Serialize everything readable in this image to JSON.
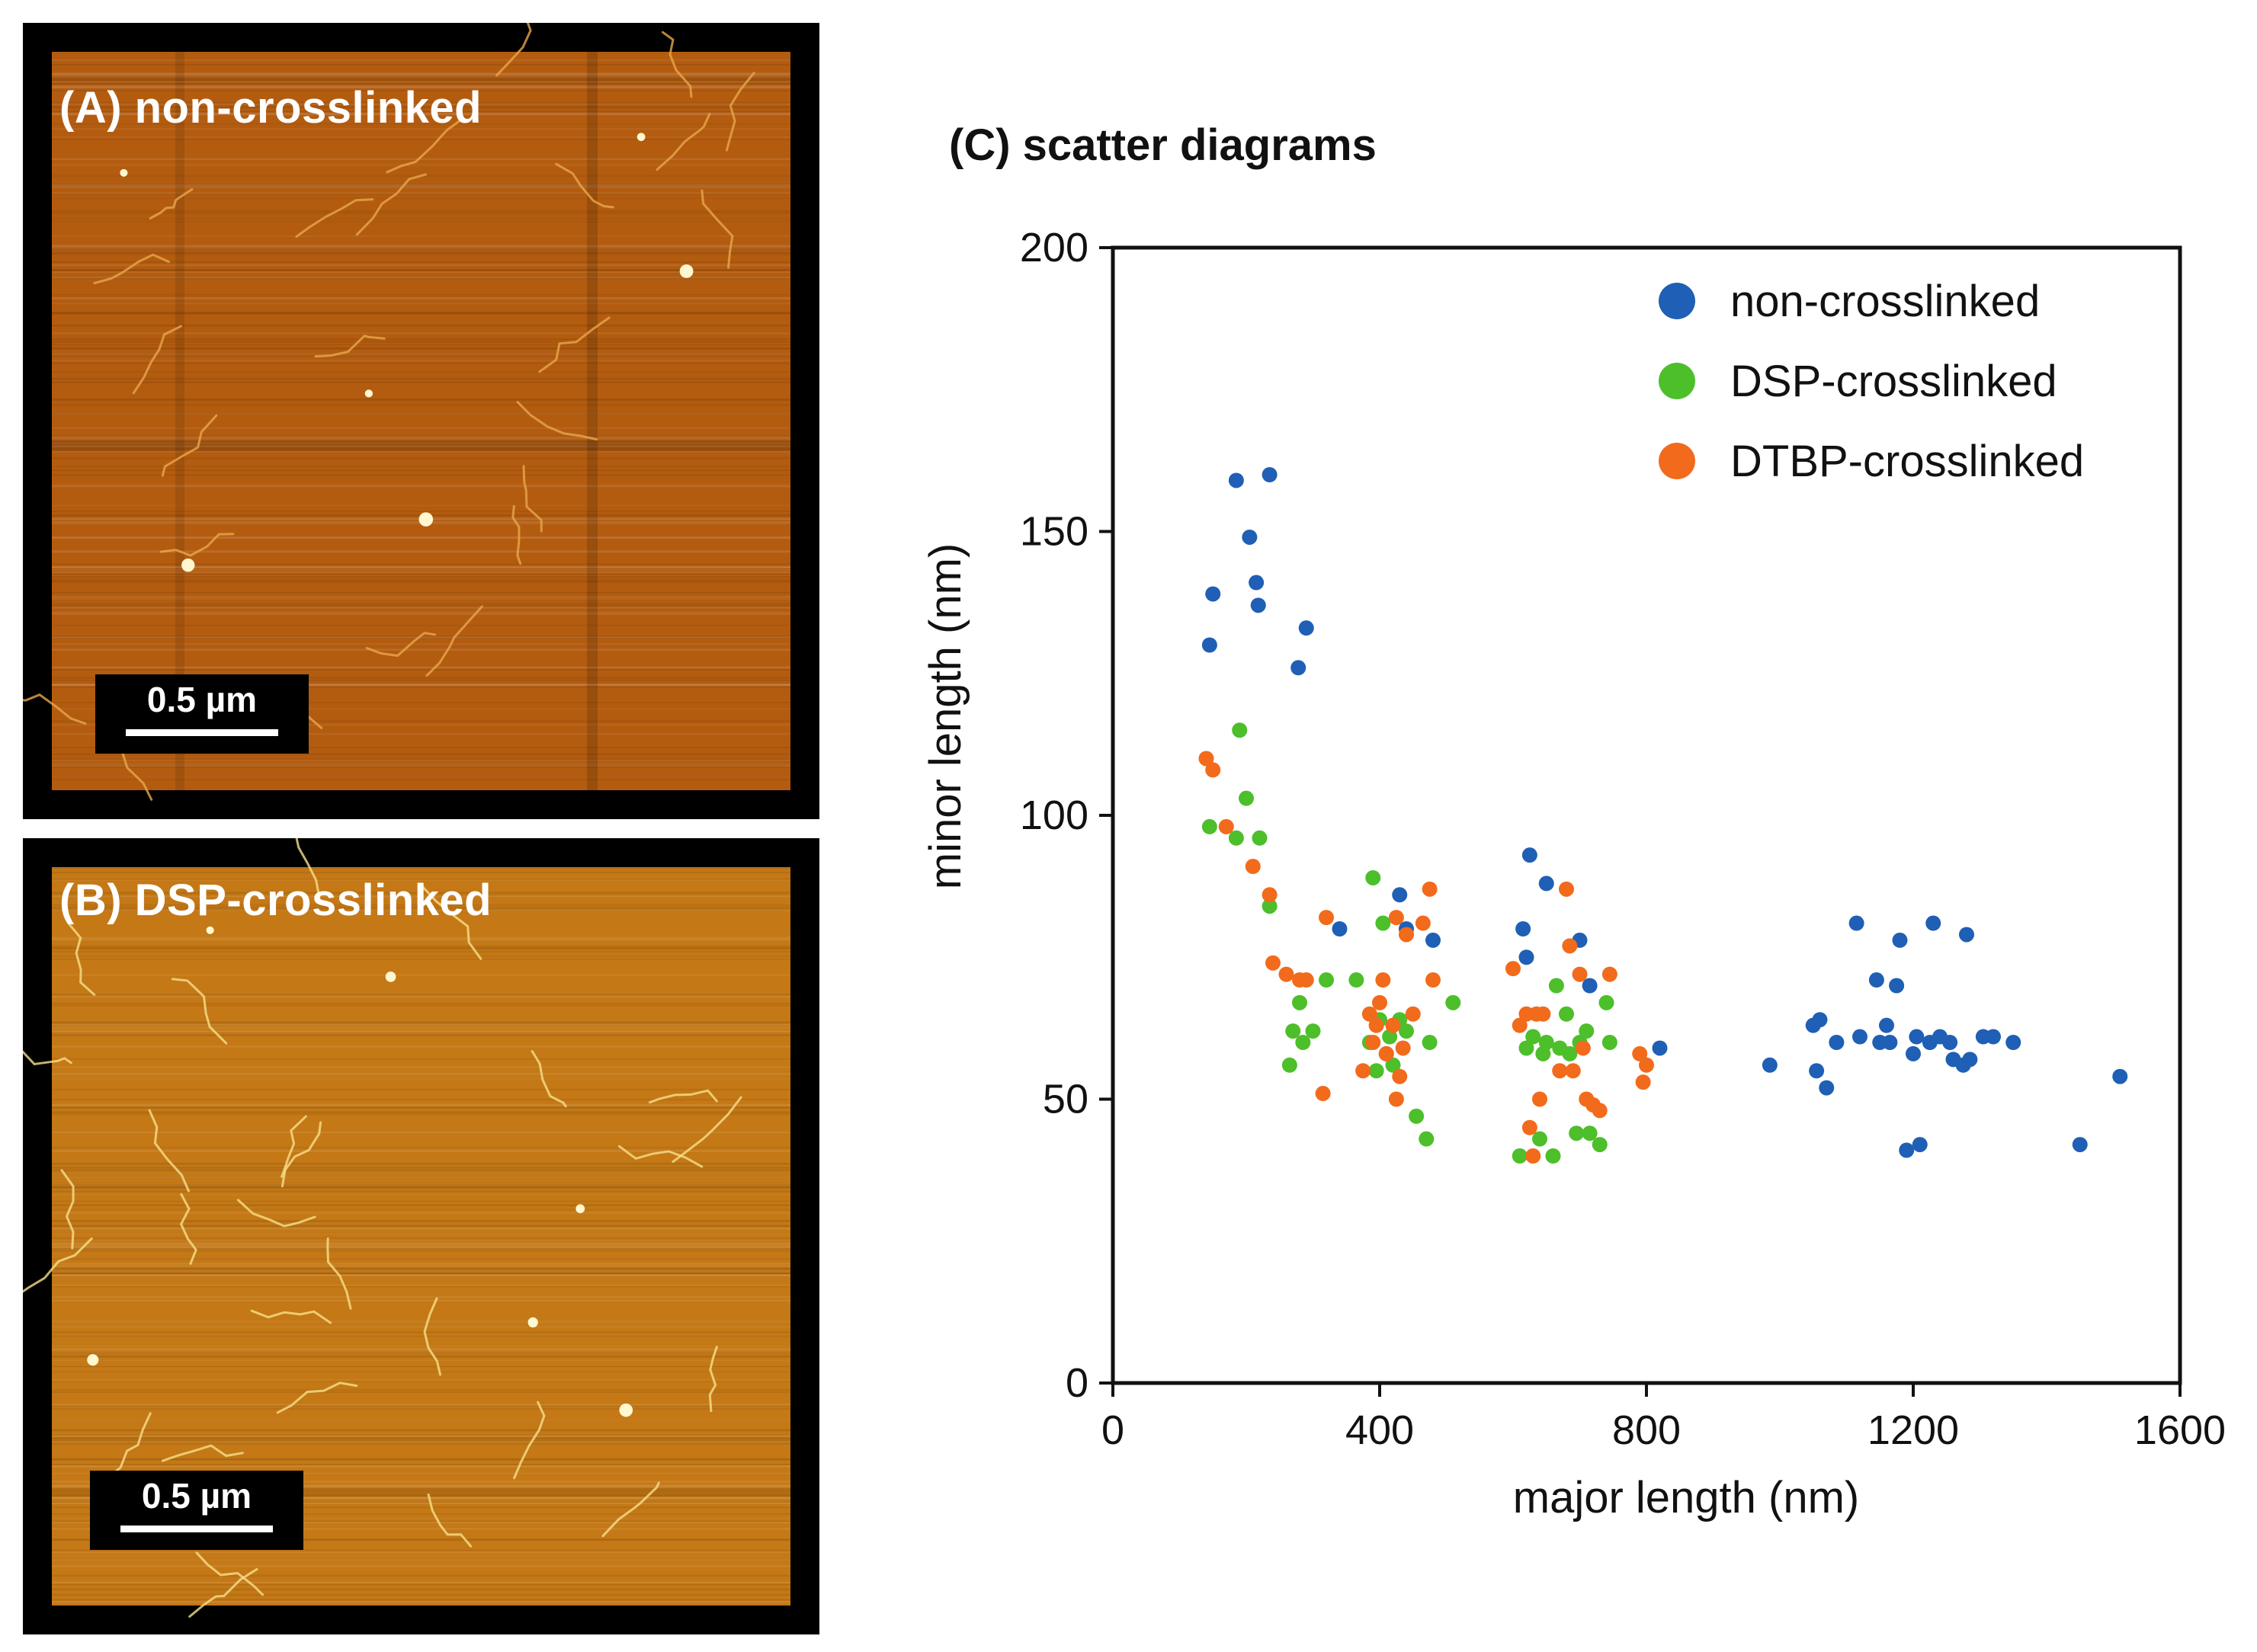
{
  "panels": [
    {
      "label": "(A) non-crosslinked",
      "scalebar": "0.5 µm",
      "palette": "dark"
    },
    {
      "label": "(B) DSP-crosslinked",
      "scalebar": "0.5 µm",
      "palette": "bright"
    }
  ],
  "colors": {
    "afm_dark": "#b35c10",
    "afm_bright": "#c47816",
    "non_crosslinked": "#1f5fb5",
    "dsp": "#4cbf2a",
    "dtbp": "#f26a1b"
  },
  "chart_data": {
    "type": "scatter",
    "title": "(C) scatter diagrams",
    "xlabel": "major length (nm)",
    "ylabel": "minor length (nm)",
    "xlim": [
      0,
      1600
    ],
    "ylim": [
      0,
      200
    ],
    "xticks": [
      0,
      400,
      800,
      1200,
      1600
    ],
    "yticks": [
      0,
      50,
      100,
      150,
      200
    ],
    "grid": false,
    "legend_position": "top-right",
    "series": [
      {
        "name": "non-crosslinked",
        "color": "#1f5fb5",
        "points": [
          [
            145,
            130
          ],
          [
            150,
            139
          ],
          [
            185,
            159
          ],
          [
            205,
            149
          ],
          [
            215,
            141
          ],
          [
            218,
            137
          ],
          [
            235,
            160
          ],
          [
            278,
            126
          ],
          [
            290,
            133
          ],
          [
            340,
            80
          ],
          [
            430,
            86
          ],
          [
            440,
            80
          ],
          [
            480,
            78
          ],
          [
            615,
            80
          ],
          [
            620,
            75
          ],
          [
            625,
            93
          ],
          [
            650,
            88
          ],
          [
            700,
            78
          ],
          [
            715,
            70
          ],
          [
            820,
            59
          ],
          [
            985,
            56
          ],
          [
            1050,
            63
          ],
          [
            1055,
            55
          ],
          [
            1060,
            64
          ],
          [
            1070,
            52
          ],
          [
            1085,
            60
          ],
          [
            1115,
            81
          ],
          [
            1120,
            61
          ],
          [
            1145,
            71
          ],
          [
            1150,
            60
          ],
          [
            1160,
            63
          ],
          [
            1165,
            60
          ],
          [
            1175,
            70
          ],
          [
            1180,
            78
          ],
          [
            1190,
            41
          ],
          [
            1200,
            58
          ],
          [
            1205,
            61
          ],
          [
            1210,
            42
          ],
          [
            1225,
            60
          ],
          [
            1230,
            81
          ],
          [
            1240,
            61
          ],
          [
            1255,
            60
          ],
          [
            1260,
            57
          ],
          [
            1275,
            56
          ],
          [
            1280,
            79
          ],
          [
            1285,
            57
          ],
          [
            1305,
            61
          ],
          [
            1320,
            61
          ],
          [
            1350,
            60
          ],
          [
            1450,
            42
          ],
          [
            1510,
            54
          ]
        ]
      },
      {
        "name": "DSP-crosslinked",
        "color": "#4cbf2a",
        "points": [
          [
            145,
            98
          ],
          [
            185,
            96
          ],
          [
            190,
            115
          ],
          [
            200,
            103
          ],
          [
            220,
            96
          ],
          [
            235,
            84
          ],
          [
            265,
            56
          ],
          [
            270,
            62
          ],
          [
            280,
            67
          ],
          [
            285,
            60
          ],
          [
            300,
            62
          ],
          [
            320,
            71
          ],
          [
            365,
            71
          ],
          [
            385,
            60
          ],
          [
            390,
            89
          ],
          [
            395,
            55
          ],
          [
            400,
            64
          ],
          [
            405,
            81
          ],
          [
            410,
            58
          ],
          [
            415,
            61
          ],
          [
            420,
            56
          ],
          [
            430,
            64
          ],
          [
            440,
            62
          ],
          [
            455,
            47
          ],
          [
            470,
            43
          ],
          [
            475,
            60
          ],
          [
            510,
            67
          ],
          [
            610,
            40
          ],
          [
            620,
            59
          ],
          [
            630,
            61
          ],
          [
            640,
            43
          ],
          [
            645,
            58
          ],
          [
            650,
            60
          ],
          [
            660,
            40
          ],
          [
            665,
            70
          ],
          [
            670,
            59
          ],
          [
            680,
            65
          ],
          [
            685,
            58
          ],
          [
            695,
            44
          ],
          [
            700,
            60
          ],
          [
            710,
            62
          ],
          [
            715,
            44
          ],
          [
            730,
            42
          ],
          [
            740,
            67
          ],
          [
            745,
            60
          ]
        ]
      },
      {
        "name": "DTBP-crosslinked",
        "color": "#f26a1b",
        "points": [
          [
            140,
            110
          ],
          [
            150,
            108
          ],
          [
            170,
            98
          ],
          [
            210,
            91
          ],
          [
            235,
            86
          ],
          [
            240,
            74
          ],
          [
            260,
            72
          ],
          [
            280,
            71
          ],
          [
            290,
            71
          ],
          [
            315,
            51
          ],
          [
            320,
            82
          ],
          [
            375,
            55
          ],
          [
            385,
            65
          ],
          [
            390,
            60
          ],
          [
            395,
            63
          ],
          [
            400,
            67
          ],
          [
            405,
            71
          ],
          [
            410,
            58
          ],
          [
            420,
            63
          ],
          [
            425,
            82
          ],
          [
            425,
            50
          ],
          [
            430,
            54
          ],
          [
            435,
            59
          ],
          [
            440,
            79
          ],
          [
            450,
            65
          ],
          [
            465,
            81
          ],
          [
            475,
            87
          ],
          [
            480,
            71
          ],
          [
            600,
            73
          ],
          [
            610,
            63
          ],
          [
            620,
            65
          ],
          [
            625,
            45
          ],
          [
            630,
            40
          ],
          [
            635,
            65
          ],
          [
            640,
            50
          ],
          [
            645,
            65
          ],
          [
            670,
            55
          ],
          [
            680,
            87
          ],
          [
            685,
            77
          ],
          [
            690,
            55
          ],
          [
            700,
            72
          ],
          [
            705,
            59
          ],
          [
            710,
            50
          ],
          [
            720,
            49
          ],
          [
            730,
            48
          ],
          [
            745,
            72
          ],
          [
            790,
            58
          ],
          [
            795,
            53
          ],
          [
            800,
            56
          ]
        ]
      }
    ]
  }
}
